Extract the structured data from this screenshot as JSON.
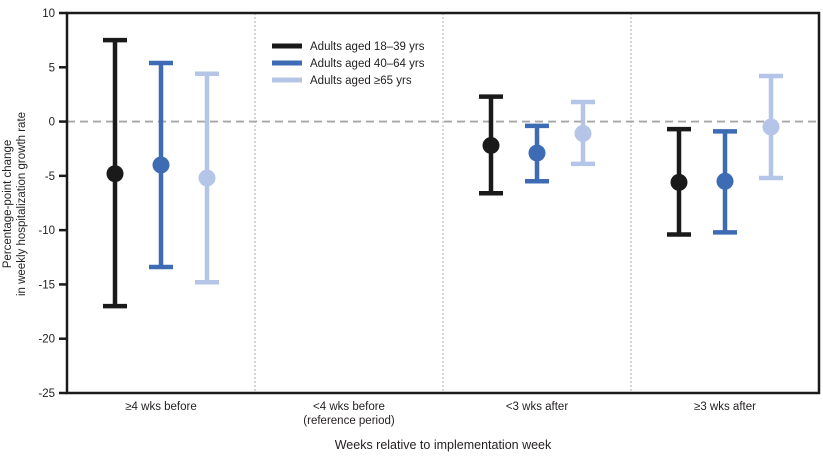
{
  "chart_data": {
    "type": "scatter",
    "title": "",
    "xlabel": "Weeks relative to implementation week",
    "ylabel": "Percentage-point change in weekly hospitalization growth rate",
    "ylabel_lines": [
      "Percentage-point change",
      "in weekly hospitalization growth rate"
    ],
    "ylim": [
      -25,
      10
    ],
    "yticks": [
      10,
      5,
      0,
      -5,
      -10,
      -15,
      -20,
      -25
    ],
    "grid": false,
    "zero_reference_line": {
      "value": 0,
      "style": "dashed",
      "color": "#a6a6a6"
    },
    "panel_divider_color": "#bfbfbf",
    "axis_color": "#1a1a1a",
    "legend_position": "top of second panel",
    "categories": [
      "≥4 wks before",
      "<4 wks before\n(reference period)",
      "<3 wks after",
      "≥3 wks after"
    ],
    "reference_category": "<4 wks before (reference period)",
    "series": [
      {
        "name": "Adults aged 18–39 yrs",
        "color": "#1a1a1a",
        "values": [
          {
            "category": "≥4 wks before",
            "estimate": -4.8,
            "ci_low": -17.0,
            "ci_high": 7.5
          },
          {
            "category": "<4 wks before (reference period)",
            "estimate": null,
            "ci_low": null,
            "ci_high": null
          },
          {
            "category": "<3 wks after",
            "estimate": -2.2,
            "ci_low": -6.6,
            "ci_high": 2.3
          },
          {
            "category": "≥3 wks after",
            "estimate": -5.6,
            "ci_low": -10.4,
            "ci_high": -0.7
          }
        ]
      },
      {
        "name": "Adults aged 40–64 yrs",
        "color": "#3d6cb5",
        "values": [
          {
            "category": "≥4 wks before",
            "estimate": -4.0,
            "ci_low": -13.4,
            "ci_high": 5.4
          },
          {
            "category": "<4 wks before (reference period)",
            "estimate": null,
            "ci_low": null,
            "ci_high": null
          },
          {
            "category": "<3 wks after",
            "estimate": -2.9,
            "ci_low": -5.5,
            "ci_high": -0.4
          },
          {
            "category": "≥3 wks after",
            "estimate": -5.5,
            "ci_low": -10.2,
            "ci_high": -0.9
          }
        ]
      },
      {
        "name": "Adults aged ≥65 yrs",
        "color": "#b5c5e7",
        "values": [
          {
            "category": "≥4 wks before",
            "estimate": -5.2,
            "ci_low": -14.8,
            "ci_high": 4.4
          },
          {
            "category": "<4 wks before (reference period)",
            "estimate": null,
            "ci_low": null,
            "ci_high": null
          },
          {
            "category": "<3 wks after",
            "estimate": -1.1,
            "ci_low": -3.9,
            "ci_high": 1.8
          },
          {
            "category": "≥3 wks after",
            "estimate": -0.5,
            "ci_low": -5.2,
            "ci_high": 4.2
          }
        ]
      }
    ]
  }
}
